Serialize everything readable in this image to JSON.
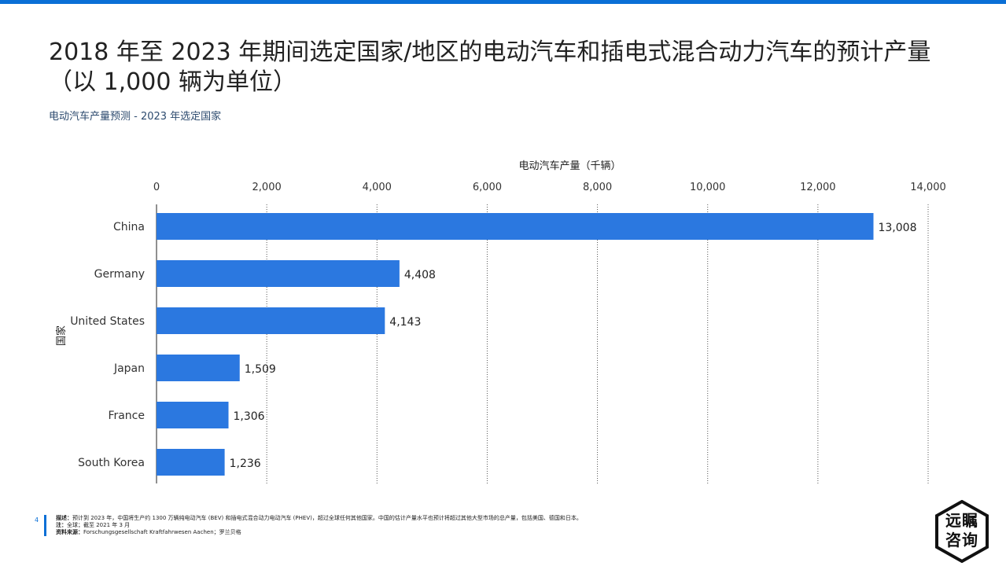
{
  "header": {
    "title": "2018 年至 2023 年期间选定国家/地区的电动汽车和插电式混合动力汽车的预计产量（以 1,000 辆为单位）",
    "subtitle": "电动汽车产量预测 - 2023 年选定国家"
  },
  "chart_data": {
    "type": "bar",
    "orientation": "horizontal",
    "categories": [
      "China",
      "Germany",
      "United States",
      "Japan",
      "France",
      "South Korea"
    ],
    "values": [
      13008,
      4408,
      4143,
      1509,
      1306,
      1236
    ],
    "value_labels": [
      "13,008",
      "4,408",
      "4,143",
      "1,509",
      "1,306",
      "1,236"
    ],
    "xlabel": "电动汽车产量（千辆）",
    "ylabel": "国家",
    "xlim": [
      0,
      14000
    ],
    "ticks": [
      0,
      2000,
      4000,
      6000,
      8000,
      10000,
      12000,
      14000
    ],
    "tick_labels": [
      "0",
      "2,000",
      "4,000",
      "6,000",
      "8,000",
      "10,000",
      "12,000",
      "14,000"
    ],
    "bar_color": "#2b78e0",
    "grid": true
  },
  "footer": {
    "page_number": "4",
    "description_key": "描述：",
    "description": "预计到 2023 年，中国将生产约 1300 万辆纯电动汽车 (BEV) 和插电式混合动力电动汽车 (PHEV)，超过全球任何其他国家。中国的估计产量水平也预计将超过其他大型市场的总产量，包括美国、德国和日本。",
    "note_key": "注：",
    "note": "全球；截至 2021 年 3 月",
    "source_key": "资料来源：",
    "source": "Forschungsgesellschaft Kraftfahrwesen Aachen；罗兰贝格"
  },
  "logo": {
    "line1": "远瞩",
    "line2": "咨询"
  }
}
